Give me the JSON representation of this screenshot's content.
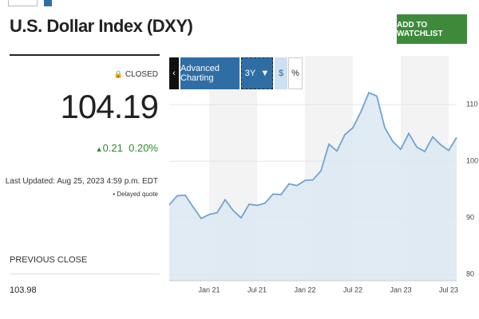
{
  "header": {
    "title": "U.S. Dollar Index (DXY)",
    "button": "ADD TO WATCHLIST"
  },
  "quote": {
    "status": "CLOSED",
    "price": "104.19",
    "change": "0.21",
    "change_percent": "0.20%",
    "updated": "Last Updated: Aug 25, 2023 4:59 p.m. EDT",
    "delay": "Delayed quote",
    "previous_close_label": "PREVIOUS CLOSE",
    "previous_close": "103.98"
  },
  "toolbar": {
    "back": "‹",
    "advanced": "Advanced Charting",
    "range": "3Y",
    "dollar": "$",
    "percent": "%"
  },
  "chart_data": {
    "type": "line",
    "color": "#6fa3d6",
    "fill": "#dbe8f1",
    "band": "#f3f3f3",
    "categories": [
      null,
      null,
      null,
      null,
      null,
      "Jan 21",
      null,
      null,
      null,
      null,
      null,
      "Jul 21",
      null,
      null,
      null,
      null,
      null,
      "Jan 22",
      null,
      null,
      null,
      null,
      null,
      "Jul 22",
      null,
      null,
      null,
      null,
      null,
      "Jan 23",
      null,
      null,
      null,
      null,
      null,
      "Jul 23",
      null
    ],
    "values": [
      92.3,
      93.9,
      94.0,
      91.9,
      89.9,
      90.6,
      90.9,
      93.2,
      91.3,
      90.0,
      92.4,
      92.2,
      92.6,
      94.2,
      94.1,
      96.0,
      95.7,
      96.6,
      96.7,
      98.3,
      103.0,
      101.8,
      104.7,
      105.9,
      108.7,
      112.1,
      111.5,
      105.9,
      103.5,
      102.1,
      104.9,
      102.5,
      101.7,
      104.3,
      102.9,
      101.9,
      104.19
    ],
    "ylim": [
      78.9,
      118.6
    ],
    "yticks": [
      80,
      90,
      100,
      110
    ],
    "grid": true
  }
}
